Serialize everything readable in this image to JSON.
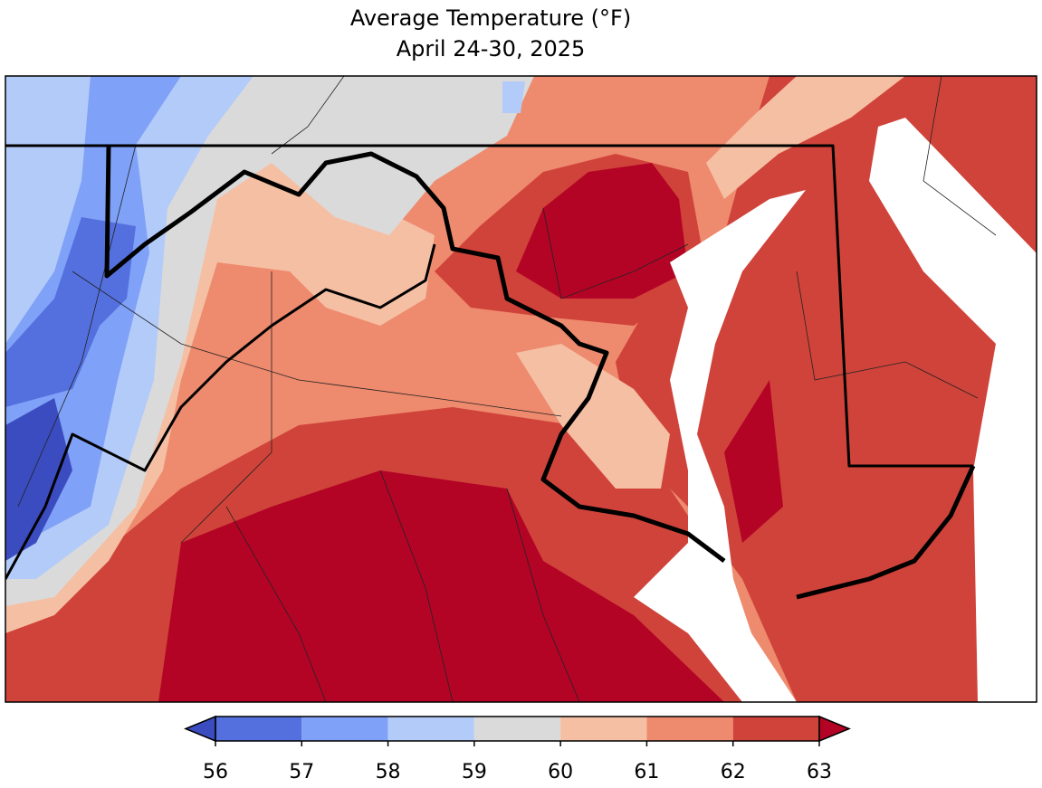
{
  "title": "Average Temperature (°F)",
  "subtitle": "April 24-30, 2025",
  "colorbar": {
    "levels": [
      56,
      57,
      58,
      59,
      60,
      61,
      62,
      63
    ],
    "colors": [
      "#3b4cc0",
      "#5470de",
      "#7fa1f7",
      "#b3cbf9",
      "#dadada",
      "#f5bfa4",
      "#ee8a6d",
      "#d0433a",
      "#b40426"
    ],
    "extend": "both"
  }
}
